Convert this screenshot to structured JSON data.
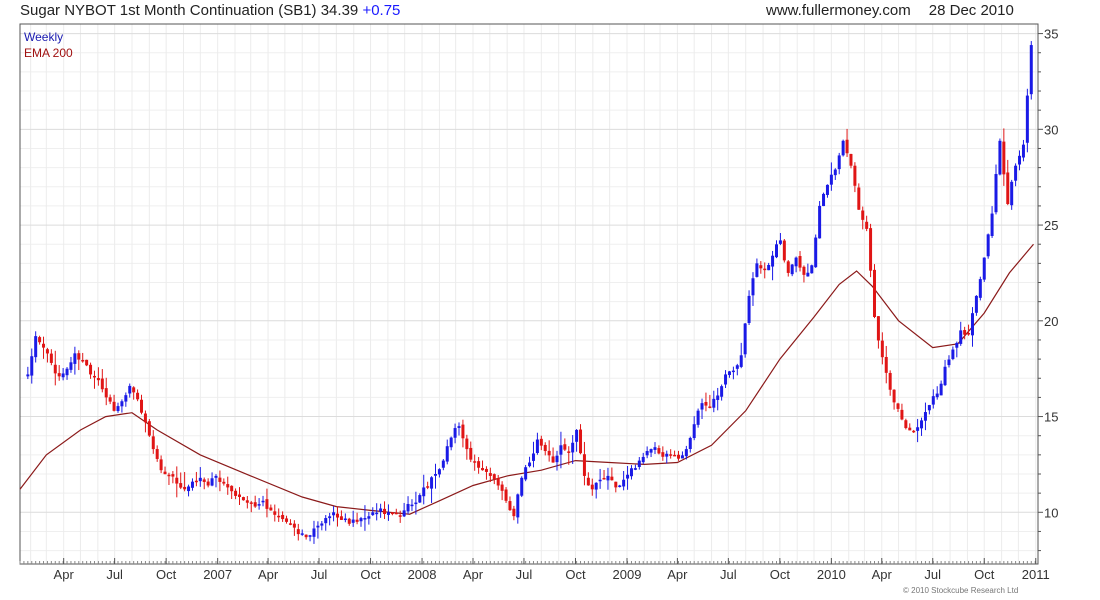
{
  "header": {
    "instrument": "Sugar NYBOT 1st Month Continuation (SB1)",
    "price": "34.39",
    "change": "+0.75",
    "site": "www.fullermoney.com",
    "date": "28 Dec 2010"
  },
  "legend": {
    "weekly": "Weekly",
    "ema": "EMA 200"
  },
  "copyright": "© 2010 Stockcube Research Ltd",
  "colors": {
    "up": "#1a1ae6",
    "down": "#e01515",
    "ema": "#8b1a1a",
    "grid": "#dcdcdc",
    "axis": "#555555"
  },
  "chart_data": {
    "type": "ohlc",
    "title": "Sugar NYBOT 1st Month Continuation (SB1) 34.39 +0.75",
    "x_tick_labels": [
      "Apr",
      "Jul",
      "Oct",
      "2007",
      "Apr",
      "Jul",
      "Oct",
      "2008",
      "Apr",
      "Jul",
      "Oct",
      "2009",
      "Apr",
      "Jul",
      "Oct",
      "2010",
      "Apr",
      "Jul",
      "Oct",
      "2011"
    ],
    "y_ticks": [
      10,
      15,
      20,
      25,
      30,
      35
    ],
    "ylim": [
      7.3,
      35.5
    ],
    "y_axis_position": "right",
    "grid": true,
    "legend_position": "top-left",
    "series": [
      {
        "name": "Weekly",
        "kind": "price",
        "points": [
          [
            "2006-01-27",
            17.2
          ],
          [
            "2006-02-10",
            19.2
          ],
          [
            "2006-02-24",
            18.6
          ],
          [
            "2006-03-10",
            17.8
          ],
          [
            "2006-03-24",
            17.1
          ],
          [
            "2006-04-07",
            17.5
          ],
          [
            "2006-04-21",
            18.3
          ],
          [
            "2006-05-05",
            17.9
          ],
          [
            "2006-05-19",
            17.2
          ],
          [
            "2006-06-02",
            16.9
          ],
          [
            "2006-06-16",
            16.0
          ],
          [
            "2006-06-30",
            15.3
          ],
          [
            "2006-07-14",
            15.8
          ],
          [
            "2006-07-28",
            16.6
          ],
          [
            "2006-08-11",
            15.9
          ],
          [
            "2006-08-25",
            14.7
          ],
          [
            "2006-09-08",
            13.3
          ],
          [
            "2006-09-22",
            12.2
          ],
          [
            "2006-10-06",
            11.9
          ],
          [
            "2006-10-20",
            11.5
          ],
          [
            "2006-11-03",
            11.2
          ],
          [
            "2006-11-17",
            11.6
          ],
          [
            "2006-12-01",
            11.8
          ],
          [
            "2006-12-15",
            11.4
          ],
          [
            "2006-12-29",
            11.9
          ],
          [
            "2007-01-12",
            11.5
          ],
          [
            "2007-01-26",
            11.1
          ],
          [
            "2007-02-09",
            10.8
          ],
          [
            "2007-02-23",
            10.5
          ],
          [
            "2007-03-09",
            10.3
          ],
          [
            "2007-03-23",
            10.6
          ],
          [
            "2007-04-06",
            10.1
          ],
          [
            "2007-04-20",
            9.8
          ],
          [
            "2007-05-04",
            9.5
          ],
          [
            "2007-05-18",
            9.2
          ],
          [
            "2007-06-01",
            8.9
          ],
          [
            "2007-06-15",
            8.8
          ],
          [
            "2007-06-29",
            9.3
          ],
          [
            "2007-07-13",
            9.7
          ],
          [
            "2007-07-27",
            10.0
          ],
          [
            "2007-08-10",
            9.6
          ],
          [
            "2007-08-24",
            9.4
          ],
          [
            "2007-09-07",
            9.5
          ],
          [
            "2007-09-21",
            9.7
          ],
          [
            "2007-10-05",
            10.0
          ],
          [
            "2007-10-19",
            10.2
          ],
          [
            "2007-11-02",
            10.0
          ],
          [
            "2007-11-16",
            9.9
          ],
          [
            "2007-11-30",
            10.1
          ],
          [
            "2007-12-14",
            10.4
          ],
          [
            "2007-12-28",
            10.9
          ],
          [
            "2008-01-11",
            11.3
          ],
          [
            "2008-01-25",
            12.0
          ],
          [
            "2008-02-08",
            12.7
          ],
          [
            "2008-02-22",
            13.9
          ],
          [
            "2008-03-07",
            14.5
          ],
          [
            "2008-03-21",
            13.3
          ],
          [
            "2008-04-04",
            12.6
          ],
          [
            "2008-04-18",
            12.2
          ],
          [
            "2008-05-02",
            11.9
          ],
          [
            "2008-05-16",
            11.4
          ],
          [
            "2008-05-30",
            10.6
          ],
          [
            "2008-06-13",
            9.8
          ],
          [
            "2008-06-27",
            11.8
          ],
          [
            "2008-07-11",
            12.6
          ],
          [
            "2008-07-25",
            13.8
          ],
          [
            "2008-08-08",
            13.2
          ],
          [
            "2008-08-22",
            12.6
          ],
          [
            "2008-09-05",
            13.5
          ],
          [
            "2008-09-19",
            13.1
          ],
          [
            "2008-10-03",
            14.3
          ],
          [
            "2008-10-17",
            11.9
          ],
          [
            "2008-10-31",
            11.2
          ],
          [
            "2008-11-14",
            11.7
          ],
          [
            "2008-11-28",
            11.9
          ],
          [
            "2008-12-12",
            11.3
          ],
          [
            "2008-12-26",
            11.7
          ],
          [
            "2009-01-09",
            12.3
          ],
          [
            "2009-01-23",
            12.7
          ],
          [
            "2009-02-06",
            13.2
          ],
          [
            "2009-02-20",
            13.4
          ],
          [
            "2009-03-06",
            12.9
          ],
          [
            "2009-03-20",
            13.0
          ],
          [
            "2009-04-03",
            12.8
          ],
          [
            "2009-04-17",
            13.3
          ],
          [
            "2009-05-01",
            14.6
          ],
          [
            "2009-05-15",
            15.7
          ],
          [
            "2009-05-29",
            15.5
          ],
          [
            "2009-06-12",
            16.1
          ],
          [
            "2009-06-26",
            17.2
          ],
          [
            "2009-07-10",
            17.4
          ],
          [
            "2009-07-24",
            18.2
          ],
          [
            "2009-08-07",
            21.3
          ],
          [
            "2009-08-21",
            23.0
          ],
          [
            "2009-09-04",
            22.7
          ],
          [
            "2009-09-18",
            23.4
          ],
          [
            "2009-10-02",
            24.2
          ],
          [
            "2009-10-16",
            22.5
          ],
          [
            "2009-10-30",
            23.3
          ],
          [
            "2009-11-13",
            22.4
          ],
          [
            "2009-11-27",
            22.9
          ],
          [
            "2009-12-11",
            26.0
          ],
          [
            "2009-12-25",
            27.1
          ],
          [
            "2010-01-08",
            27.9
          ],
          [
            "2010-01-22",
            29.4
          ],
          [
            "2010-02-05",
            28.1
          ],
          [
            "2010-02-19",
            25.8
          ],
          [
            "2010-03-05",
            24.8
          ],
          [
            "2010-03-19",
            20.2
          ],
          [
            "2010-04-02",
            18.1
          ],
          [
            "2010-04-16",
            16.4
          ],
          [
            "2010-04-30",
            15.4
          ],
          [
            "2010-05-14",
            14.4
          ],
          [
            "2010-05-28",
            14.2
          ],
          [
            "2010-06-11",
            14.8
          ],
          [
            "2010-06-25",
            15.6
          ],
          [
            "2010-07-09",
            16.2
          ],
          [
            "2010-07-23",
            17.6
          ],
          [
            "2010-08-06",
            18.5
          ],
          [
            "2010-08-20",
            19.5
          ],
          [
            "2010-09-03",
            19.3
          ],
          [
            "2010-09-17",
            21.3
          ],
          [
            "2010-10-01",
            23.3
          ],
          [
            "2010-10-15",
            25.6
          ],
          [
            "2010-10-29",
            29.4
          ],
          [
            "2010-11-12",
            26.1
          ],
          [
            "2010-11-26",
            28.1
          ],
          [
            "2010-12-10",
            29.2
          ],
          [
            "2010-12-24",
            34.4
          ]
        ]
      },
      {
        "name": "EMA 200",
        "kind": "line",
        "points": [
          [
            "2006-01-13",
            11.2
          ],
          [
            "2006-03-01",
            13.0
          ],
          [
            "2006-05-01",
            14.3
          ],
          [
            "2006-06-15",
            15.0
          ],
          [
            "2006-08-01",
            15.2
          ],
          [
            "2006-09-15",
            14.3
          ],
          [
            "2006-12-01",
            13.0
          ],
          [
            "2007-03-01",
            11.9
          ],
          [
            "2007-06-01",
            10.8
          ],
          [
            "2007-08-01",
            10.3
          ],
          [
            "2007-10-01",
            10.1
          ],
          [
            "2007-12-10",
            9.9
          ],
          [
            "2008-02-01",
            10.6
          ],
          [
            "2008-04-01",
            11.4
          ],
          [
            "2008-06-01",
            11.9
          ],
          [
            "2008-08-01",
            12.2
          ],
          [
            "2008-10-01",
            12.7
          ],
          [
            "2008-12-01",
            12.6
          ],
          [
            "2009-02-01",
            12.5
          ],
          [
            "2009-04-01",
            12.6
          ],
          [
            "2009-06-01",
            13.5
          ],
          [
            "2009-08-01",
            15.3
          ],
          [
            "2009-10-01",
            18.0
          ],
          [
            "2009-12-01",
            20.2
          ],
          [
            "2010-01-15",
            21.9
          ],
          [
            "2010-02-15",
            22.6
          ],
          [
            "2010-03-15",
            21.8
          ],
          [
            "2010-05-01",
            20.0
          ],
          [
            "2010-07-01",
            18.6
          ],
          [
            "2010-08-15",
            18.8
          ],
          [
            "2010-10-01",
            20.4
          ],
          [
            "2010-11-15",
            22.5
          ],
          [
            "2010-12-28",
            24.0
          ]
        ]
      }
    ]
  }
}
